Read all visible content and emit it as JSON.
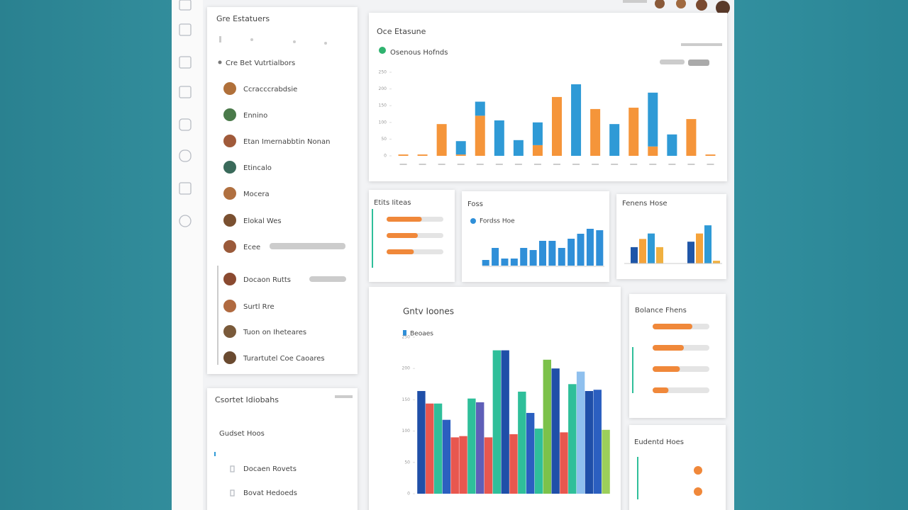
{
  "people_panel": {
    "title": "Gre Estatuers",
    "subtitle": "Cre Bet Vutrtialbors",
    "people": [
      "Ccracccrabdsie",
      "Ennino",
      "Etan Imernabbtin Nonan",
      "Etincalo",
      "Mocera",
      "Elokal Wes",
      "Ecee",
      "Docaon Rutts",
      "Surtl Rre",
      "Tuon on Iheteares",
      "Turartutel Coe Caoares"
    ]
  },
  "files_panel": {
    "title": "Csortet Idiobahs",
    "section": "Gudset Hoos",
    "items": [
      "Docaen Rovets",
      "Bovat Hedoeds"
    ]
  },
  "main_chart": {
    "type": "bar",
    "stacked": true,
    "title": "Oce Etasune",
    "legend": "Osenous Hofnds",
    "legend_color": "#2fb36f",
    "ylim": [
      0,
      250
    ],
    "yticks": [
      0,
      50,
      100,
      150,
      200,
      250
    ],
    "grid": false,
    "series": [
      {
        "color": "#f5953a",
        "values": [
          4,
          4,
          95,
          4,
          120,
          0,
          0,
          32,
          176,
          0,
          140,
          0,
          144,
          28,
          0,
          110,
          4
        ]
      },
      {
        "color": "#2f9ad6",
        "values": [
          0,
          0,
          0,
          40,
          42,
          106,
          47,
          68,
          0,
          214,
          0,
          95,
          0,
          161,
          64,
          0,
          0
        ]
      }
    ]
  },
  "tasks_card": {
    "type": "progress",
    "title": "Etits Iiteas",
    "xlim": [
      0,
      100
    ],
    "color": "#f0883a",
    "values": [
      62,
      55,
      48
    ]
  },
  "foss_card": {
    "type": "bar",
    "title": "Foss",
    "legend": "Fordss Hoe",
    "color": "#2f8fd8",
    "ylim": [
      0,
      60
    ],
    "values": [
      8,
      25,
      10,
      10,
      25,
      22,
      35,
      35,
      25,
      38,
      45,
      52,
      50
    ]
  },
  "fenens_card": {
    "type": "grouped",
    "title": "Fenens Hose",
    "ylim": [
      0,
      100
    ],
    "series": [
      {
        "color": "#1f56a8",
        "values": [
          30,
          40
        ]
      },
      {
        "color": "#f5a33a",
        "values": [
          45,
          55
        ]
      },
      {
        "color": "#2f9ad6",
        "values": [
          55,
          70
        ]
      },
      {
        "color": "#f0b040",
        "values": [
          30,
          5
        ]
      }
    ]
  },
  "growth_chart": {
    "type": "bar",
    "title": "Gntv Ioones",
    "legend": "Beoaes",
    "legend_color": "#2f8fd8",
    "ylim": [
      0,
      250
    ],
    "yticks": [
      0,
      50,
      100,
      150,
      200,
      250
    ],
    "values": [
      164,
      144,
      144,
      118,
      90,
      92,
      152,
      146,
      90,
      229,
      229,
      95,
      163,
      129,
      104,
      214,
      200,
      98,
      175,
      195,
      164,
      166,
      102
    ],
    "colors": [
      "#1f4fa8",
      "#e8574f",
      "#2fbf9a",
      "#2b5fc0",
      "#e8574f",
      "#e8574f",
      "#2fbf9a",
      "#5f5fb8",
      "#e8574f",
      "#2fbf9a",
      "#1f4fa8",
      "#e8574f",
      "#2fbf9a",
      "#2b5fc0",
      "#2fbf9a",
      "#7cc24a",
      "#1f4fa8",
      "#e8574f",
      "#2fbf9a",
      "#8fc0ee",
      "#1f4fa8",
      "#2b5fc0",
      "#9ccf5a"
    ]
  },
  "balance_card": {
    "type": "progress",
    "title": "Bolance Fhens",
    "xlim": [
      0,
      100
    ],
    "color": "#f0883a",
    "values": [
      70,
      55,
      48,
      28
    ]
  },
  "students_card": {
    "title": "Eudentd Hoes"
  }
}
